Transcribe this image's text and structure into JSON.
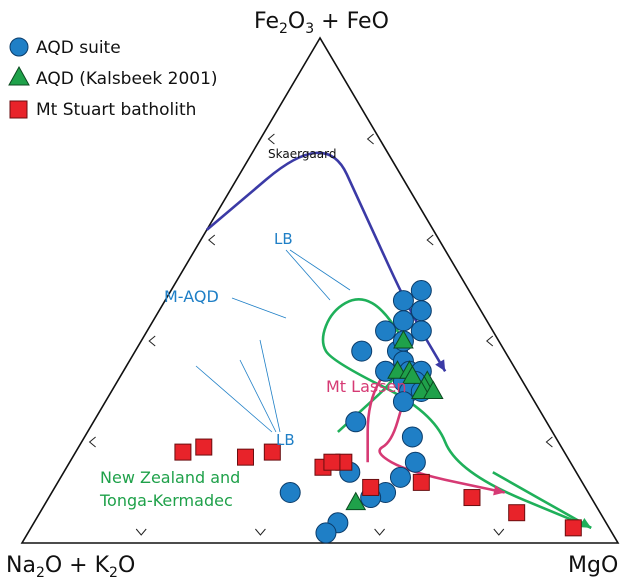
{
  "chart_data": {
    "type": "scatter",
    "subtype": "ternary (AFM diagram)",
    "vertices": {
      "top": "Fe2O3 + FeO",
      "left": "Na2O + K2O",
      "right": "MgO"
    },
    "legend_position": "top-left",
    "series": [
      {
        "name": "AQD suite",
        "marker": "circle",
        "color": "#1f7fc6",
        "points": [
          [
            0.42,
            0.18,
            0.4
          ],
          [
            0.38,
            0.18,
            0.44
          ],
          [
            0.42,
            0.12,
            0.46
          ],
          [
            0.38,
            0.24,
            0.38
          ],
          [
            0.34,
            0.22,
            0.44
          ],
          [
            0.46,
            0.1,
            0.44
          ],
          [
            0.5,
            0.08,
            0.42
          ],
          [
            0.48,
            0.12,
            0.4
          ],
          [
            0.44,
            0.14,
            0.42
          ],
          [
            0.4,
            0.16,
            0.44
          ],
          [
            0.36,
            0.18,
            0.46
          ],
          [
            0.34,
            0.18,
            0.48
          ],
          [
            0.34,
            0.16,
            0.5
          ],
          [
            0.32,
            0.2,
            0.48
          ],
          [
            0.32,
            0.18,
            0.5
          ],
          [
            0.3,
            0.2,
            0.5
          ],
          [
            0.3,
            0.18,
            0.52
          ],
          [
            0.28,
            0.22,
            0.5
          ],
          [
            0.24,
            0.32,
            0.44
          ],
          [
            0.21,
            0.24,
            0.55
          ],
          [
            0.16,
            0.26,
            0.58
          ],
          [
            0.14,
            0.38,
            0.48
          ],
          [
            0.1,
            0.5,
            0.4
          ],
          [
            0.13,
            0.3,
            0.57
          ],
          [
            0.1,
            0.34,
            0.56
          ],
          [
            0.09,
            0.37,
            0.54
          ],
          [
            0.04,
            0.45,
            0.51
          ],
          [
            0.02,
            0.48,
            0.5
          ]
        ]
      },
      {
        "name": "AQD (Kalsbeek 2001)",
        "marker": "triangle",
        "color": "#1fa14a",
        "points": [
          [
            0.4,
            0.16,
            0.44
          ],
          [
            0.34,
            0.2,
            0.46
          ],
          [
            0.34,
            0.18,
            0.48
          ],
          [
            0.33,
            0.18,
            0.49
          ],
          [
            0.32,
            0.16,
            0.52
          ],
          [
            0.31,
            0.17,
            0.52
          ],
          [
            0.3,
            0.18,
            0.52
          ],
          [
            0.3,
            0.16,
            0.54
          ],
          [
            0.08,
            0.4,
            0.52
          ]
        ]
      },
      {
        "name": "Mt Stuart batholith",
        "marker": "square",
        "color": "#e8232a",
        "points": [
          [
            0.18,
            0.64,
            0.18
          ],
          [
            0.19,
            0.6,
            0.21
          ],
          [
            0.18,
            0.49,
            0.33
          ],
          [
            0.17,
            0.54,
            0.29
          ],
          [
            0.16,
            0.38,
            0.46
          ],
          [
            0.15,
            0.42,
            0.43
          ],
          [
            0.16,
            0.4,
            0.44
          ],
          [
            0.11,
            0.36,
            0.53
          ],
          [
            0.12,
            0.27,
            0.61
          ],
          [
            0.09,
            0.2,
            0.71
          ],
          [
            0.06,
            0.14,
            0.8
          ],
          [
            0.03,
            0.06,
            0.91
          ]
        ]
      }
    ],
    "trend_lines": [
      {
        "label": "Skaergaard",
        "color": "#3b3aa6",
        "points": [
          [
            0.62,
            0.38,
            0.0
          ],
          [
            0.82,
            0.08,
            0.1
          ],
          [
            0.64,
            0.1,
            0.26
          ],
          [
            0.46,
            0.12,
            0.42
          ],
          [
            0.34,
            0.12,
            0.54
          ]
        ]
      },
      {
        "label": "M-AQD",
        "color": "#1fb05a",
        "points": [
          [
            0.22,
            0.36,
            0.42
          ],
          [
            0.36,
            0.16,
            0.48
          ],
          [
            0.46,
            0.16,
            0.38
          ],
          [
            0.49,
            0.19,
            0.32
          ],
          [
            0.46,
            0.25,
            0.29
          ],
          [
            0.4,
            0.3,
            0.3
          ],
          [
            0.36,
            0.3,
            0.34
          ],
          [
            0.26,
            0.18,
            0.56
          ],
          [
            0.14,
            0.2,
            0.66
          ],
          [
            0.03,
            0.03,
            0.94
          ]
        ]
      },
      {
        "label": "New Zealand and Tonga-Kermadec",
        "color": "#1fb05a",
        "points": [
          [
            0.14,
            0.14,
            0.72
          ],
          [
            0.03,
            0.03,
            0.94
          ]
        ]
      },
      {
        "label": "Mt Lassen",
        "color": "#d63a74",
        "points": [
          [
            0.16,
            0.34,
            0.5
          ],
          [
            0.28,
            0.28,
            0.44
          ],
          [
            0.36,
            0.2,
            0.44
          ],
          [
            0.36,
            0.16,
            0.48
          ],
          [
            0.28,
            0.22,
            0.5
          ],
          [
            0.2,
            0.28,
            0.52
          ],
          [
            0.18,
            0.32,
            0.5
          ],
          [
            0.14,
            0.28,
            0.58
          ],
          [
            0.1,
            0.14,
            0.76
          ]
        ]
      }
    ],
    "annotations": {
      "skaergaard": "Skaergaard",
      "lb_top": "LB",
      "lb_bottom": "LB",
      "m_aqd": "M-AQD",
      "mt_lassen": "Mt Lassen",
      "nz_line1": "New Zealand and",
      "nz_line2": "Tonga-Kermadec"
    }
  }
}
